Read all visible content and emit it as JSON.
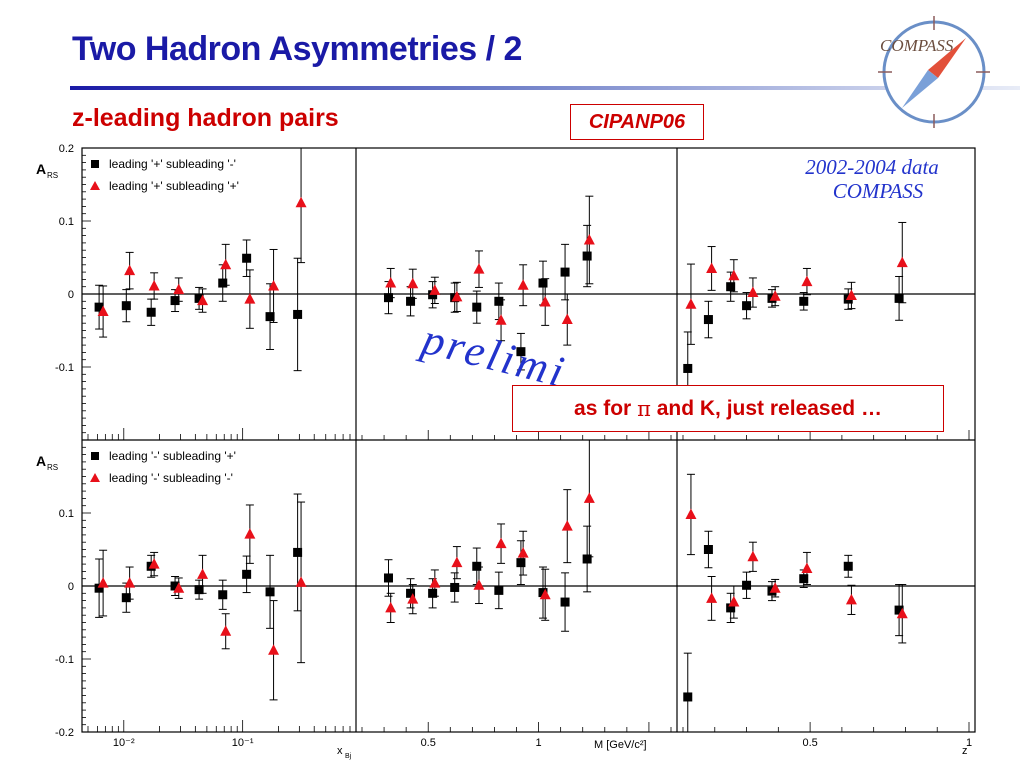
{
  "slide": {
    "title": "Two Hadron Asymmetries / 2",
    "subtitle": "z-leading hadron pairs",
    "conference_tag": "CIPANP06",
    "note_prefix": "as for ",
    "note_symbol": "π",
    "note_suffix": " and K, just released …",
    "logo_text": "COMPASS"
  },
  "colors": {
    "title": "#1a1aa6",
    "accent_red": "#cc0000",
    "series_black": "#000000",
    "series_red": "#e8101a",
    "watermark_blue": "#2233cc"
  },
  "chart_data": {
    "type": "scatter",
    "ylabel": "A_RS",
    "ylim": [
      -0.2,
      0.2
    ],
    "yticks": [
      -0.2,
      -0.1,
      0,
      0.1,
      0.2
    ],
    "ytick_labels_top": [
      "-0.1",
      "0",
      "0.1",
      "0.2"
    ],
    "ytick_labels_bottom": [
      "-0.2",
      "-0.1",
      "0",
      "0.1"
    ],
    "data_label": "2002-2004 data",
    "experiment_label": "COMPASS",
    "watermark": "prelimi",
    "columns": [
      {
        "xlabel": "x_Bj",
        "scale": "log",
        "xlim": [
          0.005,
          0.8
        ],
        "tick_labels": [
          {
            "v": 0.01,
            "t": "10⁻²"
          },
          {
            "v": 0.1,
            "t": "10⁻¹"
          }
        ]
      },
      {
        "xlabel": "M_inv [GeV/c²]",
        "scale": "linear",
        "xlim": [
          0.2,
          1.6
        ],
        "tick_labels": [
          {
            "v": 0.5,
            "t": "0.5"
          },
          {
            "v": 1.0,
            "t": "1"
          }
        ]
      },
      {
        "xlabel": "z",
        "scale": "linear",
        "xlim": [
          0.1,
          1.0
        ],
        "tick_labels": [
          {
            "v": 0.5,
            "t": "0.5"
          },
          {
            "v": 1.0,
            "t": "1"
          }
        ]
      }
    ],
    "rows": [
      {
        "legend": [
          "leading '+' subleading '-'",
          "leading '+' subleading '+'"
        ],
        "panels": [
          {
            "series": [
              {
                "name": "leading '+' subleading '-'",
                "marker": "square",
                "x": [
                  0.0062,
                  0.0105,
                  0.017,
                  0.027,
                  0.043,
                  0.068,
                  0.108,
                  0.17,
                  0.29
                ],
                "y": [
                  -0.018,
                  -0.016,
                  -0.025,
                  -0.009,
                  -0.006,
                  0.015,
                  0.049,
                  -0.031,
                  -0.028
                ],
                "err": [
                  0.03,
                  0.022,
                  0.018,
                  0.015,
                  0.015,
                  0.025,
                  0.025,
                  0.045,
                  0.077
                ]
              },
              {
                "name": "leading '+' subleading '+'",
                "marker": "triangle",
                "x": [
                  0.0067,
                  0.0112,
                  0.018,
                  0.029,
                  0.046,
                  0.072,
                  0.115,
                  0.182,
                  0.31
                ],
                "y": [
                  -0.024,
                  0.032,
                  0.011,
                  0.006,
                  -0.009,
                  0.04,
                  -0.007,
                  0.011,
                  0.125
                ],
                "err": [
                  0.035,
                  0.025,
                  0.018,
                  0.016,
                  0.016,
                  0.028,
                  0.04,
                  0.05,
                  0.082
                ]
              }
            ]
          },
          {
            "series": [
              {
                "name": "leading '+' subleading '-'",
                "marker": "square",
                "x": [
                  0.32,
                  0.42,
                  0.52,
                  0.62,
                  0.72,
                  0.82,
                  0.92,
                  1.02,
                  1.12,
                  1.22
                ],
                "y": [
                  -0.005,
                  -0.01,
                  -0.001,
                  -0.005,
                  -0.018,
                  -0.01,
                  -0.079,
                  0.015,
                  0.03,
                  0.052
                ],
                "err": [
                  0.022,
                  0.02,
                  0.018,
                  0.02,
                  0.022,
                  0.025,
                  0.025,
                  0.03,
                  0.038,
                  0.042
                ]
              },
              {
                "name": "leading '+' subleading '+'",
                "marker": "triangle",
                "x": [
                  0.33,
                  0.43,
                  0.53,
                  0.63,
                  0.73,
                  0.83,
                  0.93,
                  1.03,
                  1.13,
                  1.23
                ],
                "y": [
                  0.015,
                  0.014,
                  0.005,
                  -0.004,
                  0.034,
                  -0.036,
                  0.012,
                  -0.011,
                  -0.035,
                  0.074
                ],
                "err": [
                  0.02,
                  0.02,
                  0.018,
                  0.02,
                  0.025,
                  0.028,
                  0.028,
                  0.032,
                  0.035,
                  0.06
                ]
              }
            ]
          },
          {
            "series": [
              {
                "name": "leading '+' subleading '-'",
                "marker": "square",
                "x": [
                  0.115,
                  0.18,
                  0.25,
                  0.3,
                  0.38,
                  0.48,
                  0.62,
                  0.78
                ],
                "y": [
                  -0.102,
                  -0.035,
                  0.01,
                  -0.016,
                  -0.006,
                  -0.01,
                  -0.007,
                  -0.006
                ],
                "err": [
                  0.05,
                  0.025,
                  0.02,
                  0.018,
                  0.012,
                  0.012,
                  0.014,
                  0.03
                ]
              },
              {
                "name": "leading '+' subleading '+'",
                "marker": "triangle",
                "x": [
                  0.125,
                  0.19,
                  0.26,
                  0.32,
                  0.39,
                  0.49,
                  0.63,
                  0.79
                ],
                "y": [
                  -0.014,
                  0.035,
                  0.025,
                  0.002,
                  -0.003,
                  0.017,
                  -0.002,
                  0.043
                ],
                "err": [
                  0.055,
                  0.03,
                  0.022,
                  0.02,
                  0.013,
                  0.018,
                  0.018,
                  0.055
                ]
              }
            ]
          }
        ]
      },
      {
        "legend": [
          "leading '-' subleading '+'",
          "leading '-' subleading '-'"
        ],
        "panels": [
          {
            "series": [
              {
                "name": "leading '-' subleading '+'",
                "marker": "square",
                "x": [
                  0.0062,
                  0.0105,
                  0.017,
                  0.027,
                  0.043,
                  0.068,
                  0.108,
                  0.17,
                  0.29
                ],
                "y": [
                  -0.003,
                  -0.016,
                  0.027,
                  0.0,
                  -0.005,
                  -0.012,
                  0.016,
                  -0.008,
                  0.046
                ],
                "err": [
                  0.04,
                  0.02,
                  0.015,
                  0.013,
                  0.013,
                  0.02,
                  0.025,
                  0.05,
                  0.08
                ]
              },
              {
                "name": "leading '-' subleading '-'",
                "marker": "triangle",
                "x": [
                  0.0067,
                  0.0112,
                  0.018,
                  0.029,
                  0.046,
                  0.072,
                  0.115,
                  0.182,
                  0.31
                ],
                "y": [
                  0.004,
                  0.004,
                  0.03,
                  -0.003,
                  0.016,
                  -0.062,
                  0.071,
                  -0.088,
                  0.005
                ],
                "err": [
                  0.045,
                  0.022,
                  0.016,
                  0.014,
                  0.026,
                  0.024,
                  0.04,
                  0.068,
                  0.11
                ]
              }
            ]
          },
          {
            "series": [
              {
                "name": "leading '-' subleading '+'",
                "marker": "square",
                "x": [
                  0.32,
                  0.42,
                  0.52,
                  0.62,
                  0.72,
                  0.82,
                  0.92,
                  1.02,
                  1.12,
                  1.22
                ],
                "y": [
                  0.011,
                  -0.01,
                  -0.01,
                  -0.002,
                  0.027,
                  -0.006,
                  0.032,
                  -0.009,
                  -0.022,
                  0.037
                ],
                "err": [
                  0.025,
                  0.02,
                  0.02,
                  0.02,
                  0.025,
                  0.025,
                  0.03,
                  0.035,
                  0.04,
                  0.045
                ]
              },
              {
                "name": "leading '-' subleading '-'",
                "marker": "triangle",
                "x": [
                  0.33,
                  0.43,
                  0.53,
                  0.63,
                  0.73,
                  0.83,
                  0.93,
                  1.03,
                  1.13,
                  1.23
                ],
                "y": [
                  -0.03,
                  -0.018,
                  0.004,
                  0.032,
                  0.001,
                  0.058,
                  0.045,
                  -0.012,
                  0.082,
                  0.12
                ],
                "err": [
                  0.02,
                  0.02,
                  0.018,
                  0.022,
                  0.025,
                  0.027,
                  0.03,
                  0.035,
                  0.05,
                  0.08
                ]
              }
            ]
          },
          {
            "series": [
              {
                "name": "leading '-' subleading '+'",
                "marker": "square",
                "x": [
                  0.115,
                  0.18,
                  0.25,
                  0.3,
                  0.38,
                  0.48,
                  0.62,
                  0.78
                ],
                "y": [
                  -0.152,
                  0.05,
                  -0.03,
                  0.001,
                  -0.007,
                  0.01,
                  0.027,
                  -0.033
                ],
                "err": [
                  0.06,
                  0.025,
                  0.02,
                  0.018,
                  0.013,
                  0.012,
                  0.015,
                  0.035
                ]
              },
              {
                "name": "leading '-' subleading '-'",
                "marker": "triangle",
                "x": [
                  0.125,
                  0.19,
                  0.26,
                  0.32,
                  0.39,
                  0.49,
                  0.63,
                  0.79
                ],
                "y": [
                  0.098,
                  -0.017,
                  -0.022,
                  0.04,
                  -0.003,
                  0.024,
                  -0.019,
                  -0.038
                ],
                "err": [
                  0.055,
                  0.03,
                  0.022,
                  0.02,
                  0.012,
                  0.022,
                  0.02,
                  0.04
                ]
              }
            ]
          }
        ]
      }
    ]
  }
}
